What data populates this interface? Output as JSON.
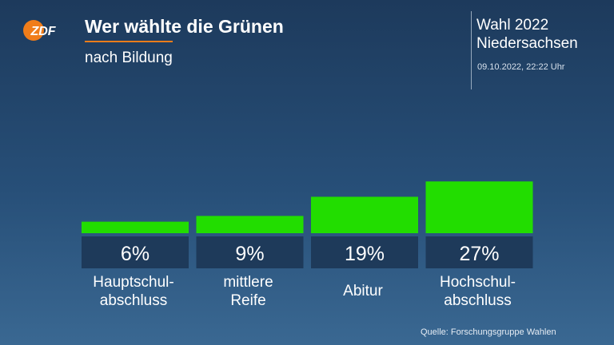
{
  "header": {
    "logo_text": "ZDF",
    "title": "Wer wählte die Grünen",
    "subtitle": "nach Bildung",
    "election_lines": [
      "Wahl 2022",
      "Niedersachsen"
    ],
    "timestamp": "09.10.2022, 22:22 Uhr"
  },
  "footer": {
    "source": "Quelle: Forschungsgruppe Wahlen"
  },
  "colors": {
    "bar": "#22dd00",
    "label_box": "#1e3a5a",
    "accent": "#f07d1a",
    "logo": "#f07d1a"
  },
  "chart_data": {
    "type": "bar",
    "title": "Wer wählte die Grünen",
    "subtitle": "nach Bildung",
    "categories": [
      [
        "Hauptschul-",
        "abschluss"
      ],
      [
        "mittlere",
        "Reife"
      ],
      [
        "Abitur"
      ],
      [
        "Hochschul-",
        "abschluss"
      ]
    ],
    "values": [
      6,
      9,
      19,
      27
    ],
    "value_labels": [
      "6%",
      "9%",
      "19%",
      "27%"
    ],
    "unit": "%",
    "grid": false,
    "legend": "none"
  }
}
